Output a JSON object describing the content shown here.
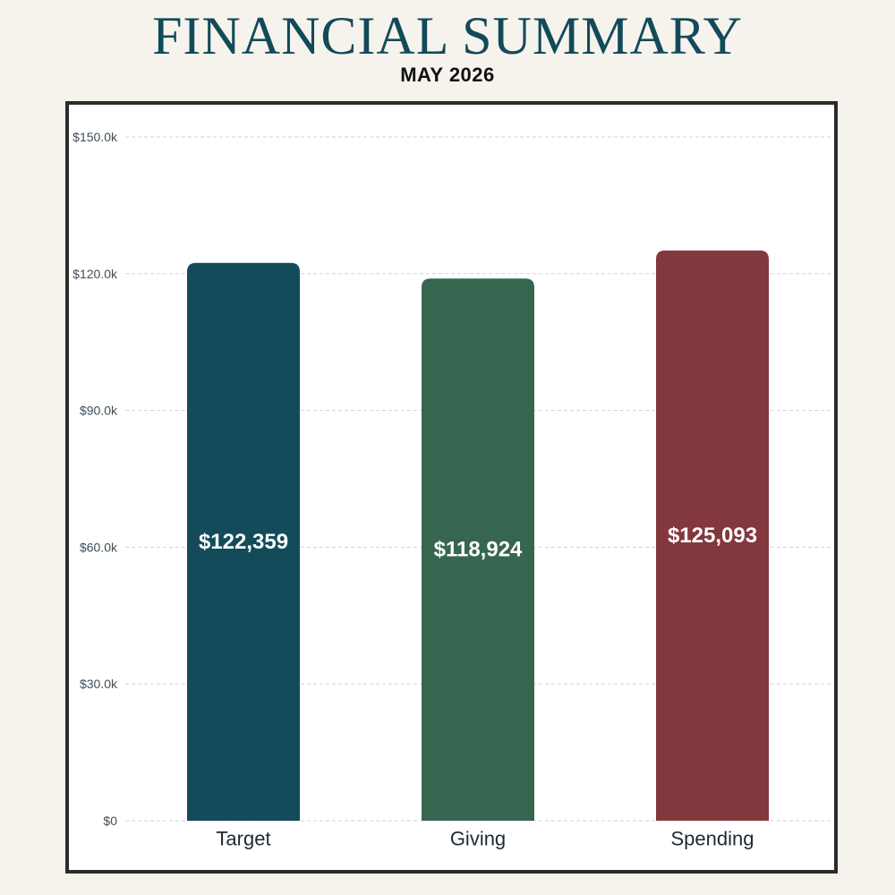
{
  "header": {
    "title": "FINANCIAL SUMMARY",
    "subtitle": "MAY 2026"
  },
  "chart_data": {
    "type": "bar",
    "title": "FINANCIAL SUMMARY",
    "subtitle": "MAY 2026",
    "categories": [
      "Target",
      "Giving",
      "Spending"
    ],
    "values": [
      122359,
      118924,
      125093
    ],
    "value_labels": [
      "$122,359",
      "$118,924",
      "$125,093"
    ],
    "colors": [
      "#134b5b",
      "#36664f",
      "#83383e"
    ],
    "yticks": [
      0,
      30000,
      60000,
      90000,
      120000,
      150000
    ],
    "ytick_labels": [
      "$0",
      "$30.0k",
      "$60.0k",
      "$90.0k",
      "$120.0k",
      "$150.0k"
    ],
    "ylim": [
      0,
      150000
    ],
    "xlabel": "",
    "ylabel": "",
    "grid": true,
    "legend": "none"
  }
}
